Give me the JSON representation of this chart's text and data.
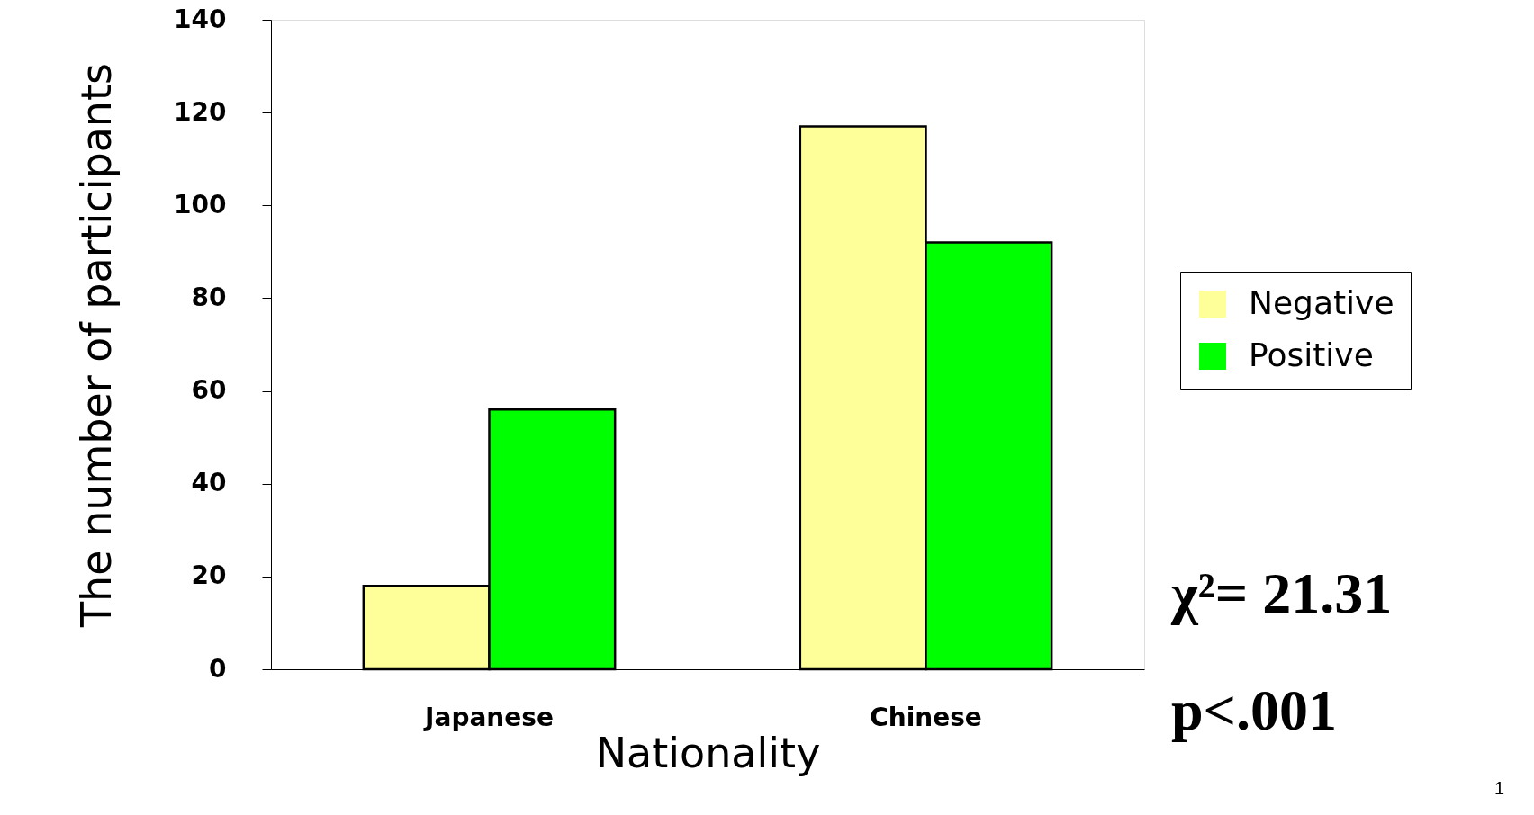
{
  "chart_data": {
    "type": "bar",
    "xlabel": "Nationality",
    "ylabel": "The number of participants",
    "categories": [
      "Japanese",
      "Chinese"
    ],
    "series": [
      {
        "name": "Negative",
        "color": "#ffff99",
        "values": [
          18,
          117
        ]
      },
      {
        "name": "Positive",
        "color": "#00ff00",
        "values": [
          56,
          92
        ]
      }
    ],
    "ylim": [
      0,
      140
    ],
    "yticks": [
      0,
      20,
      40,
      60,
      80,
      100,
      120,
      140
    ],
    "grid": false,
    "legend": "right",
    "annotations": [
      "χ²= 21.31",
      "p<.001",
      "1"
    ]
  }
}
